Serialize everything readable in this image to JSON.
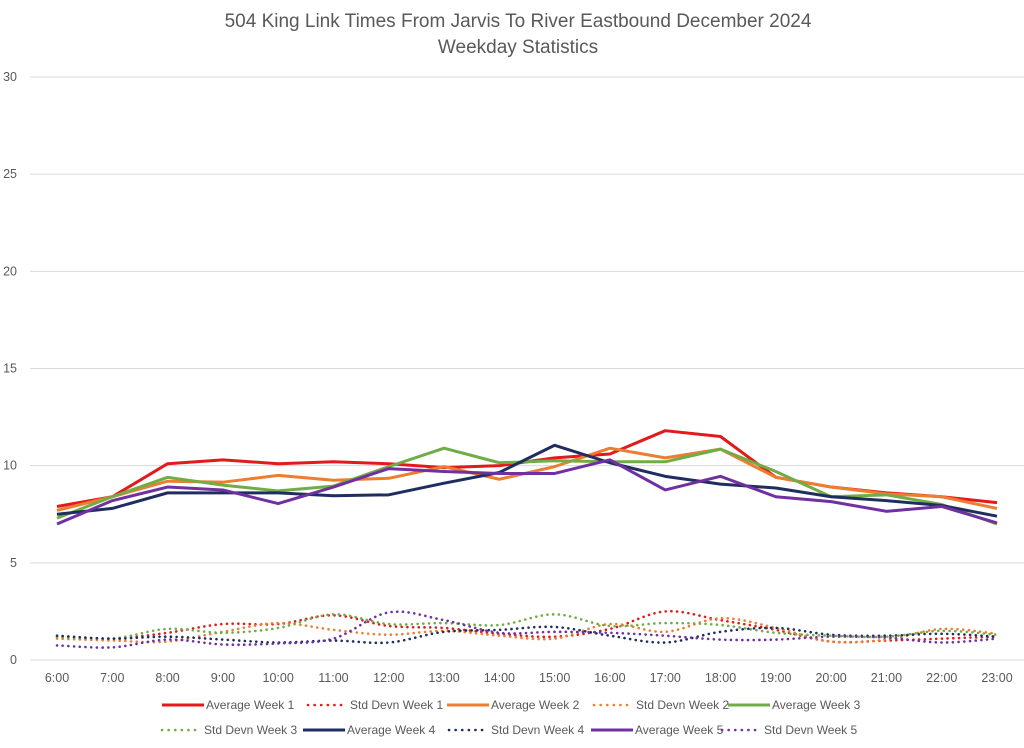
{
  "chart_data": {
    "type": "line",
    "title": "504 King Link Times From Jarvis To River Eastbound December 2024",
    "subtitle": "Weekday Statistics",
    "xlabel": "",
    "ylabel": "",
    "ylim": [
      0,
      30
    ],
    "yticks": [
      0,
      5,
      10,
      15,
      20,
      25,
      30
    ],
    "grid": true,
    "legend": "bottom",
    "categories": [
      "6:00",
      "7:00",
      "8:00",
      "9:00",
      "10:00",
      "11:00",
      "12:00",
      "13:00",
      "14:00",
      "15:00",
      "16:00",
      "17:00",
      "18:00",
      "19:00",
      "20:00",
      "21:00",
      "22:00",
      "23:00"
    ],
    "series": [
      {
        "name": "Average Week 1",
        "style": "solid",
        "color": "#e31a1c",
        "values": [
          7.9,
          8.4,
          10.1,
          10.3,
          10.1,
          10.2,
          10.1,
          9.9,
          10.0,
          10.4,
          10.6,
          11.8,
          11.5,
          9.4,
          8.9,
          8.6,
          8.4,
          8.1
        ]
      },
      {
        "name": "Std Devn Week 1",
        "style": "dotted",
        "color": "#e31a1c",
        "values": [
          1.2,
          1.1,
          1.4,
          1.85,
          1.85,
          2.3,
          1.75,
          1.65,
          1.35,
          1.2,
          1.6,
          2.5,
          2.05,
          1.55,
          0.95,
          1.0,
          1.1,
          1.2
        ]
      },
      {
        "name": "Average Week 2",
        "style": "solid",
        "color": "#ed7d31",
        "values": [
          7.7,
          8.4,
          9.2,
          9.15,
          9.5,
          9.25,
          9.35,
          9.95,
          9.3,
          9.95,
          10.9,
          10.4,
          10.85,
          9.4,
          8.9,
          8.55,
          8.4,
          7.8
        ]
      },
      {
        "name": "Std Devn Week 2",
        "style": "dotted",
        "color": "#ed7d31",
        "values": [
          1.1,
          1.0,
          0.95,
          1.45,
          1.9,
          1.55,
          1.3,
          1.5,
          1.25,
          1.1,
          1.85,
          1.45,
          2.15,
          1.65,
          0.95,
          1.05,
          1.6,
          1.35
        ]
      },
      {
        "name": "Average Week 3",
        "style": "solid",
        "color": "#70ad47",
        "values": [
          7.3,
          8.4,
          9.4,
          9.0,
          8.7,
          8.95,
          9.95,
          10.9,
          10.15,
          10.25,
          10.2,
          10.2,
          10.85,
          9.7,
          8.4,
          8.5,
          8.0,
          7.0
        ]
      },
      {
        "name": "Std Devn Week 3",
        "style": "dotted",
        "color": "#70ad47",
        "values": [
          1.2,
          1.1,
          1.6,
          1.4,
          1.65,
          2.35,
          1.85,
          1.9,
          1.8,
          2.35,
          1.75,
          1.9,
          1.8,
          1.4,
          1.25,
          1.2,
          1.5,
          1.3
        ]
      },
      {
        "name": "Average Week 4",
        "style": "solid",
        "color": "#1f2d5f",
        "values": [
          7.5,
          7.8,
          8.6,
          8.6,
          8.6,
          8.45,
          8.5,
          9.1,
          9.65,
          11.05,
          10.15,
          9.45,
          9.05,
          8.85,
          8.4,
          8.2,
          7.95,
          7.4
        ]
      },
      {
        "name": "Std Devn Week 4",
        "style": "dotted",
        "color": "#1f2d5f",
        "values": [
          1.25,
          1.1,
          1.2,
          1.05,
          0.9,
          1.0,
          0.9,
          1.45,
          1.55,
          1.7,
          1.25,
          0.9,
          1.45,
          1.65,
          1.3,
          1.25,
          1.35,
          1.2
        ]
      },
      {
        "name": "Average Week 5",
        "style": "solid",
        "color": "#7030a0",
        "values": [
          7.0,
          8.2,
          8.9,
          8.75,
          8.05,
          8.9,
          9.85,
          9.7,
          9.6,
          9.6,
          10.3,
          8.75,
          9.45,
          8.4,
          8.15,
          7.65,
          7.9,
          7.05
        ]
      },
      {
        "name": "Std Devn Week 5",
        "style": "dotted",
        "color": "#7030a0",
        "values": [
          0.75,
          0.65,
          1.05,
          0.8,
          0.85,
          1.1,
          2.45,
          2.05,
          1.4,
          1.45,
          1.4,
          1.25,
          1.05,
          1.05,
          1.2,
          1.15,
          0.9,
          1.1
        ]
      }
    ]
  }
}
